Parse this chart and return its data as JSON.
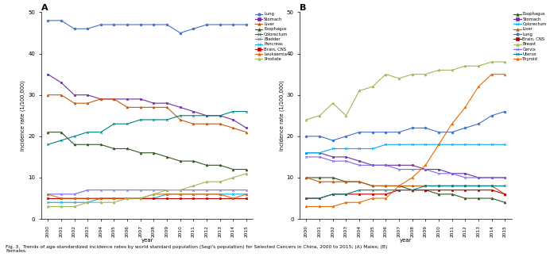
{
  "years": [
    2000,
    2001,
    2002,
    2003,
    2004,
    2005,
    2006,
    2007,
    2008,
    2009,
    2010,
    2011,
    2012,
    2013,
    2014,
    2015
  ],
  "panel_A": {
    "title": "A",
    "ylabel": "Incidence rate (1/100,000)",
    "xlabel": "year",
    "ylim": [
      0,
      50
    ],
    "yticks": [
      0,
      10,
      20,
      30,
      40,
      50
    ],
    "series": {
      "Lung": {
        "color": "#4472C4",
        "marker": "o",
        "data": [
          48,
          48,
          46,
          46,
          47,
          47,
          47,
          47,
          47,
          47,
          45,
          46,
          47,
          47,
          47,
          47
        ]
      },
      "Stomach": {
        "color": "#7030A0",
        "marker": "s",
        "data": [
          35,
          33,
          30,
          30,
          29,
          29,
          29,
          29,
          28,
          28,
          27,
          26,
          25,
          25,
          24,
          22
        ]
      },
      "Liver": {
        "color": "#C55A11",
        "marker": "^",
        "data": [
          30,
          30,
          28,
          28,
          29,
          29,
          27,
          27,
          27,
          27,
          24,
          23,
          23,
          23,
          22,
          21
        ]
      },
      "Esophagus": {
        "color": "#375623",
        "marker": "^",
        "data": [
          21,
          21,
          18,
          18,
          18,
          17,
          17,
          16,
          16,
          15,
          14,
          14,
          13,
          13,
          12,
          12
        ]
      },
      "Colorectum": {
        "color": "#008080",
        "marker": "x",
        "data": [
          18,
          19,
          20,
          21,
          21,
          23,
          23,
          24,
          24,
          24,
          25,
          25,
          25,
          25,
          26,
          26
        ]
      },
      "Bladder": {
        "color": "#7B68EE",
        "marker": "x",
        "data": [
          6,
          6,
          6,
          7,
          7,
          7,
          7,
          7,
          7,
          7,
          7,
          7,
          7,
          7,
          7,
          7
        ]
      },
      "Pancreas": {
        "color": "#00B0F0",
        "marker": "x",
        "data": [
          4,
          4,
          4,
          4,
          5,
          5,
          5,
          5,
          5,
          6,
          6,
          6,
          6,
          6,
          6,
          6
        ]
      },
      "Brain, CNS": {
        "color": "#C00000",
        "marker": "s",
        "data": [
          5,
          5,
          5,
          5,
          5,
          5,
          5,
          5,
          5,
          5,
          5,
          5,
          5,
          5,
          5,
          5
        ]
      },
      "Leukaemia": {
        "color": "#E36C09",
        "marker": "^",
        "data": [
          6,
          5,
          5,
          5,
          5,
          5,
          5,
          5,
          6,
          6,
          6,
          6,
          6,
          6,
          5,
          6
        ]
      },
      "Prostate": {
        "color": "#9BBB59",
        "marker": "^",
        "data": [
          3,
          3,
          3,
          4,
          4,
          4,
          5,
          5,
          6,
          7,
          7,
          8,
          9,
          9,
          10,
          11
        ]
      }
    }
  },
  "panel_B": {
    "title": "B",
    "ylabel": "Incidence rate (1/100,000)",
    "xlabel": "year",
    "ylim": [
      0,
      50
    ],
    "yticks": [
      0,
      10,
      20,
      30,
      40,
      50
    ],
    "series": {
      "Esophagus": {
        "color": "#375623",
        "marker": "^",
        "data": [
          10,
          10,
          10,
          9,
          9,
          8,
          8,
          8,
          7,
          7,
          6,
          6,
          5,
          5,
          5,
          4
        ]
      },
      "Stomach": {
        "color": "#7030A0",
        "marker": "s",
        "data": [
          16,
          16,
          15,
          15,
          14,
          13,
          13,
          13,
          13,
          12,
          12,
          11,
          11,
          10,
          10,
          10
        ]
      },
      "Colorectum": {
        "color": "#00B0F0",
        "marker": "x",
        "data": [
          16,
          16,
          17,
          17,
          17,
          17,
          18,
          18,
          18,
          18,
          18,
          18,
          18,
          18,
          18,
          18
        ]
      },
      "Liver": {
        "color": "#C55A11",
        "marker": "^",
        "data": [
          10,
          9,
          9,
          9,
          9,
          8,
          8,
          8,
          8,
          8,
          8,
          8,
          8,
          8,
          8,
          6
        ]
      },
      "Lung": {
        "color": "#4472C4",
        "marker": "o",
        "data": [
          20,
          20,
          19,
          20,
          21,
          21,
          21,
          21,
          22,
          22,
          21,
          21,
          22,
          23,
          25,
          26
        ]
      },
      "Brain, CNS": {
        "color": "#C00000",
        "marker": "s",
        "data": [
          5,
          5,
          6,
          6,
          6,
          6,
          6,
          7,
          7,
          7,
          7,
          7,
          7,
          7,
          7,
          6
        ]
      },
      "Breast": {
        "color": "#9BBB59",
        "marker": "^",
        "data": [
          24,
          25,
          28,
          25,
          31,
          32,
          35,
          34,
          35,
          35,
          36,
          36,
          37,
          37,
          38,
          38
        ]
      },
      "Cervix": {
        "color": "#7B68EE",
        "marker": "x",
        "data": [
          15,
          15,
          14,
          14,
          13,
          13,
          13,
          12,
          12,
          12,
          11,
          11,
          10,
          10,
          10,
          10
        ]
      },
      "Uterus": {
        "color": "#008080",
        "marker": "x",
        "data": [
          5,
          5,
          6,
          6,
          7,
          7,
          7,
          7,
          7,
          8,
          8,
          8,
          8,
          8,
          8,
          8
        ]
      },
      "Thyroid": {
        "color": "#E36C09",
        "marker": "^",
        "data": [
          3,
          3,
          3,
          4,
          4,
          5,
          5,
          8,
          10,
          13,
          18,
          23,
          27,
          32,
          35,
          35
        ]
      }
    }
  },
  "caption": "Fig. 3.  Trends of age-standardized incidence rates by world standard population (Segi's population) for Selected Cancers in China, 2000 to 2015; (A) Males; (B)\nFemales.",
  "fig_width": 6.92,
  "fig_height": 3.43,
  "dpi": 100
}
